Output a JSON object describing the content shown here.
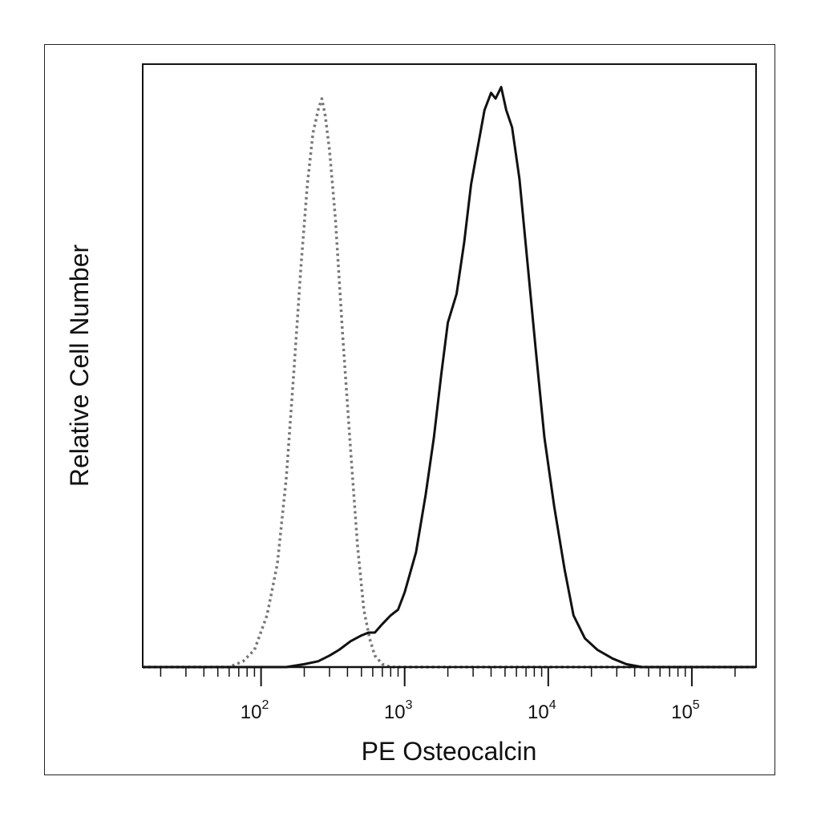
{
  "chart_data": {
    "type": "line",
    "title": "",
    "xlabel": "PE Osteocalcin",
    "ylabel": "Relative Cell Number",
    "x_scale": "log",
    "xlim": [
      15,
      280000
    ],
    "ylim": [
      0,
      1.05
    ],
    "x_ticks": [
      {
        "value": 100,
        "base": "10",
        "exp": "2"
      },
      {
        "value": 1000,
        "base": "10",
        "exp": "3"
      },
      {
        "value": 10000,
        "base": "10",
        "exp": "4"
      },
      {
        "value": 100000,
        "base": "10",
        "exp": "5"
      }
    ],
    "grid": false,
    "legend": "none",
    "series": [
      {
        "style": "dotted",
        "color": "#777777",
        "points": [
          [
            15,
            0
          ],
          [
            60,
            0
          ],
          [
            75,
            0.01
          ],
          [
            90,
            0.03
          ],
          [
            110,
            0.09
          ],
          [
            130,
            0.18
          ],
          [
            150,
            0.33
          ],
          [
            170,
            0.52
          ],
          [
            190,
            0.7
          ],
          [
            210,
            0.84
          ],
          [
            230,
            0.93
          ],
          [
            250,
            0.97
          ],
          [
            265,
            0.99
          ],
          [
            280,
            0.96
          ],
          [
            300,
            0.9
          ],
          [
            330,
            0.78
          ],
          [
            370,
            0.58
          ],
          [
            420,
            0.38
          ],
          [
            470,
            0.21
          ],
          [
            520,
            0.1
          ],
          [
            570,
            0.05
          ],
          [
            620,
            0.02
          ],
          [
            700,
            0.005
          ],
          [
            800,
            0
          ],
          [
            280000,
            0
          ]
        ]
      },
      {
        "style": "solid",
        "color": "#111111",
        "points": [
          [
            15,
            0
          ],
          [
            150,
            0
          ],
          [
            200,
            0.005
          ],
          [
            250,
            0.01
          ],
          [
            300,
            0.02
          ],
          [
            350,
            0.03
          ],
          [
            420,
            0.045
          ],
          [
            500,
            0.055
          ],
          [
            560,
            0.06
          ],
          [
            620,
            0.06
          ],
          [
            700,
            0.075
          ],
          [
            800,
            0.09
          ],
          [
            900,
            0.1
          ],
          [
            1000,
            0.13
          ],
          [
            1200,
            0.2
          ],
          [
            1400,
            0.3
          ],
          [
            1600,
            0.4
          ],
          [
            1800,
            0.51
          ],
          [
            2000,
            0.6
          ],
          [
            2300,
            0.65
          ],
          [
            2600,
            0.74
          ],
          [
            2900,
            0.84
          ],
          [
            3200,
            0.9
          ],
          [
            3600,
            0.97
          ],
          [
            4000,
            1.0
          ],
          [
            4300,
            0.99
          ],
          [
            4700,
            1.01
          ],
          [
            5100,
            0.97
          ],
          [
            5600,
            0.94
          ],
          [
            6300,
            0.85
          ],
          [
            7200,
            0.7
          ],
          [
            8200,
            0.55
          ],
          [
            9400,
            0.4
          ],
          [
            11000,
            0.28
          ],
          [
            13000,
            0.17
          ],
          [
            15000,
            0.09
          ],
          [
            18000,
            0.05
          ],
          [
            22000,
            0.03
          ],
          [
            28000,
            0.015
          ],
          [
            35000,
            0.005
          ],
          [
            45000,
            0
          ],
          [
            280000,
            0
          ]
        ]
      }
    ]
  }
}
